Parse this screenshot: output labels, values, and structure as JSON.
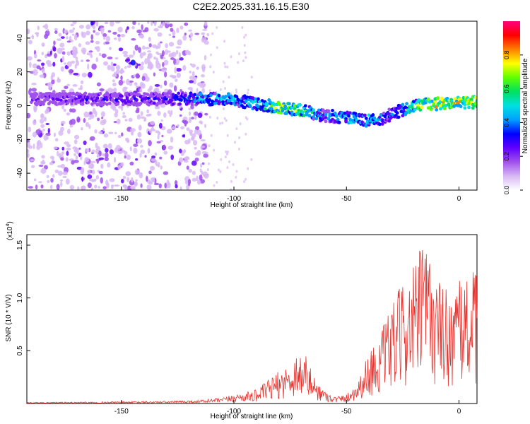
{
  "title": "C2E2.2025.331.16.15.E30",
  "colors": {
    "series_line": "#e8322d",
    "colormap": [
      "#ffffff",
      "#d8b8f4",
      "#a050ec",
      "#6000ff",
      "#0000ff",
      "#00a0ff",
      "#00e0e0",
      "#00e060",
      "#60ff00",
      "#ffff00",
      "#ff8000",
      "#ff0000",
      "#ff0080"
    ]
  },
  "chart_data": [
    {
      "type": "heatmap",
      "xlabel": "Height of straight line (km)",
      "ylabel": "Frequency (Hz)",
      "xlim": [
        -192,
        8
      ],
      "ylim": [
        -50,
        50
      ],
      "x_ticks": [
        -150,
        -100,
        -50,
        0
      ],
      "x_tick_labels": [
        "-150",
        "-100",
        "-50",
        "0"
      ],
      "y_ticks": [
        -40,
        -20,
        0,
        20,
        40
      ],
      "y_tick_labels": [
        "-40",
        "-20",
        "0",
        "20",
        "40"
      ],
      "colorbar": {
        "label": "Normalized spectral amplitude",
        "range": [
          0,
          1
        ],
        "ticks": [
          0.0,
          0.2,
          0.4,
          0.6,
          0.8
        ],
        "tick_labels": [
          "0.0",
          "0.2",
          "0.4",
          "0.6",
          "0.8"
        ]
      },
      "ridge": {
        "x": [
          -190,
          -170,
          -150,
          -130,
          -110,
          -100,
          -90,
          -80,
          -70,
          -60,
          -50,
          -40,
          -35,
          -30,
          -20,
          -10,
          0,
          8
        ],
        "y": [
          4,
          4,
          4,
          4,
          4,
          3.5,
          1,
          -1,
          -3,
          -6,
          -7,
          -9,
          -8,
          -5,
          0,
          1,
          2,
          2
        ],
        "amplitude": [
          0.28,
          0.3,
          0.32,
          0.34,
          0.55,
          0.5,
          0.55,
          0.78,
          0.72,
          0.45,
          0.55,
          0.6,
          0.5,
          0.4,
          0.7,
          0.85,
          0.82,
          0.8
        ]
      },
      "noise_region_x": [
        -192,
        -112
      ]
    },
    {
      "type": "line",
      "xlabel": "Height of straight line (km)",
      "ylabel": "SNR (10 * V/V)",
      "y_multiplier_label": "(x10",
      "y_multiplier_exp": "4",
      "xlim": [
        -192,
        8
      ],
      "ylim": [
        0,
        1.6
      ],
      "x_ticks": [
        -150,
        -100,
        -50,
        0
      ],
      "x_tick_labels": [
        "-150",
        "-100",
        "-50",
        "0"
      ],
      "y_ticks": [
        0.5,
        1.0,
        1.5
      ],
      "y_tick_labels": [
        "0.5",
        "1.0",
        "1.5"
      ],
      "envelope": {
        "x": [
          -192,
          -160,
          -130,
          -115,
          -105,
          -100,
          -90,
          -85,
          -80,
          -75,
          -72,
          -68,
          -65,
          -60,
          -55,
          -50,
          -45,
          -40,
          -35,
          -30,
          -25,
          -20,
          -15,
          -10,
          -5,
          0,
          5,
          8
        ],
        "y": [
          0.01,
          0.015,
          0.02,
          0.03,
          0.05,
          0.08,
          0.12,
          0.2,
          0.28,
          0.35,
          0.45,
          0.42,
          0.25,
          0.12,
          0.06,
          0.08,
          0.2,
          0.45,
          0.6,
          0.85,
          1.05,
          1.2,
          1.45,
          1.1,
          1.0,
          1.05,
          1.2,
          1.1
        ]
      }
    }
  ]
}
